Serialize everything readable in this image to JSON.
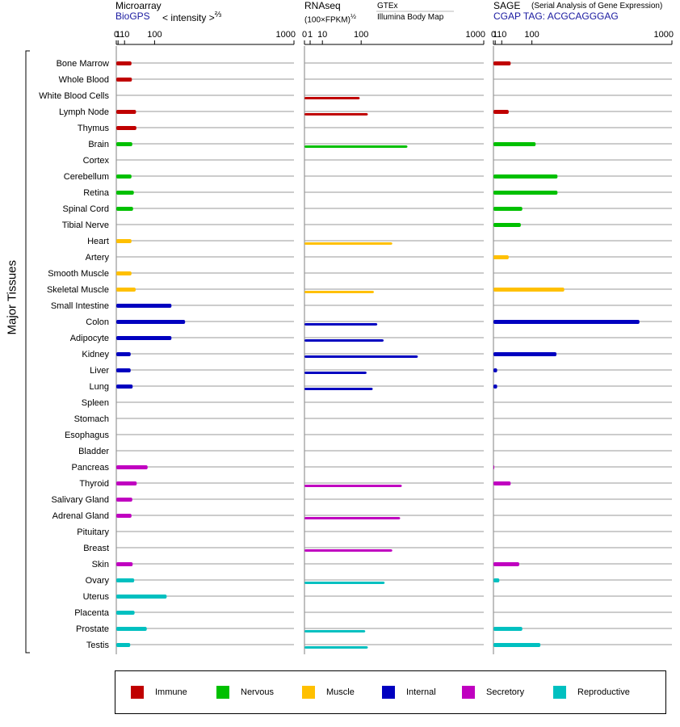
{
  "header": {
    "microarray": {
      "title": "Microarray",
      "source": "BioGPS",
      "scale_label": "< intensity >",
      "scale_exp": "⅔"
    },
    "rnaseq": {
      "title": "RNAseq",
      "scale_label": "(100×FPKM)",
      "scale_exp": "½",
      "gtex_label": "GTEx",
      "illumina_label": "Illumina Body Map"
    },
    "sage": {
      "title": "SAGE",
      "subtitle": "(Serial Analysis of Gene Expression)",
      "tag_line": "CGAP TAG: ACGCAGGGAG"
    }
  },
  "y_axis_title": "Major Tissues",
  "legend": [
    {
      "label": "Immune",
      "color": "#c00000"
    },
    {
      "label": "Nervous",
      "color": "#00c000"
    },
    {
      "label": "Muscle",
      "color": "#ffc000"
    },
    {
      "label": "Internal",
      "color": "#0000c0"
    },
    {
      "label": "Secretory",
      "color": "#c000c0"
    },
    {
      "label": "Reproductive",
      "color": "#00c0c0"
    }
  ],
  "chart_data": {
    "type": "bar",
    "orientation": "horizontal",
    "scale": "power",
    "tick_labels": [
      "0",
      "1",
      "10",
      "100",
      "1000"
    ],
    "xlim": [
      0,
      1000
    ],
    "grid": true,
    "categories": [
      "Bone Marrow",
      "Whole Blood",
      "White Blood Cells",
      "Lymph Node",
      "Thymus",
      "Brain",
      "Cortex",
      "Cerebellum",
      "Retina",
      "Spinal Cord",
      "Tibial Nerve",
      "Heart",
      "Artery",
      "Smooth Muscle",
      "Skeletal Muscle",
      "Small Intestine",
      "Colon",
      "Adipocyte",
      "Kidney",
      "Liver",
      "Lung",
      "Spleen",
      "Stomach",
      "Esophagus",
      "Bladder",
      "Pancreas",
      "Thyroid",
      "Salivary Gland",
      "Adrenal Gland",
      "Pituitary",
      "Breast",
      "Skin",
      "Ovary",
      "Uterus",
      "Placenta",
      "Prostate",
      "Testis"
    ],
    "groups": [
      "Immune",
      "Immune",
      "Immune",
      "Immune",
      "Immune",
      "Nervous",
      "Nervous",
      "Nervous",
      "Nervous",
      "Nervous",
      "Nervous",
      "Muscle",
      "Muscle",
      "Muscle",
      "Muscle",
      "Internal",
      "Internal",
      "Internal",
      "Internal",
      "Internal",
      "Internal",
      "Internal",
      "Internal",
      "Internal",
      "Internal",
      "Secretory",
      "Secretory",
      "Secretory",
      "Secretory",
      "Secretory",
      "Secretory",
      "Secretory",
      "Reproductive",
      "Reproductive",
      "Reproductive",
      "Reproductive",
      "Reproductive"
    ],
    "panels": [
      {
        "name": "Microarray",
        "series": [
          {
            "values": [
              25,
              26,
              null,
              37,
              38,
              27,
              null,
              25,
              31,
              29,
              null,
              25,
              null,
              25,
              36,
              173,
              241,
              173,
              23,
              23,
              28,
              null,
              null,
              null,
              null,
              74,
              39,
              27,
              25,
              null,
              null,
              28,
              32,
              151,
              33,
              71,
              22
            ]
          }
        ]
      },
      {
        "name": "RNAseq",
        "series": [
          {
            "name": "GTEx",
            "values": [
              null,
              null,
              null,
              null,
              null,
              null,
              null,
              null,
              null,
              null,
              null,
              null,
              null,
              null,
              null,
              null,
              null,
              null,
              null,
              null,
              null,
              null,
              null,
              null,
              null,
              null,
              null,
              null,
              null,
              null,
              null,
              null,
              null,
              null,
              null,
              null,
              null
            ]
          },
          {
            "name": "Illumina Body Map",
            "values": [
              null,
              null,
              95,
              125,
              null,
              330,
              null,
              null,
              null,
              null,
              null,
              240,
              null,
              null,
              150,
              null,
              165,
              195,
              400,
              120,
              145,
              null,
              null,
              null,
              null,
              null,
              295,
              null,
              285,
              null,
              240,
              null,
              200,
              null,
              null,
              115,
              125
            ]
          }
        ]
      },
      {
        "name": "SAGE",
        "series": [
          {
            "values": [
              30,
              null,
              null,
              25,
              null,
              115,
              null,
              215,
              215,
              65,
              60,
              null,
              25,
              null,
              250,
              null,
              740,
              null,
              210,
              3,
              3,
              null,
              null,
              null,
              null,
              0.01,
              30,
              null,
              null,
              null,
              null,
              55,
              6,
              null,
              null,
              65,
              135
            ]
          }
        ]
      }
    ]
  }
}
